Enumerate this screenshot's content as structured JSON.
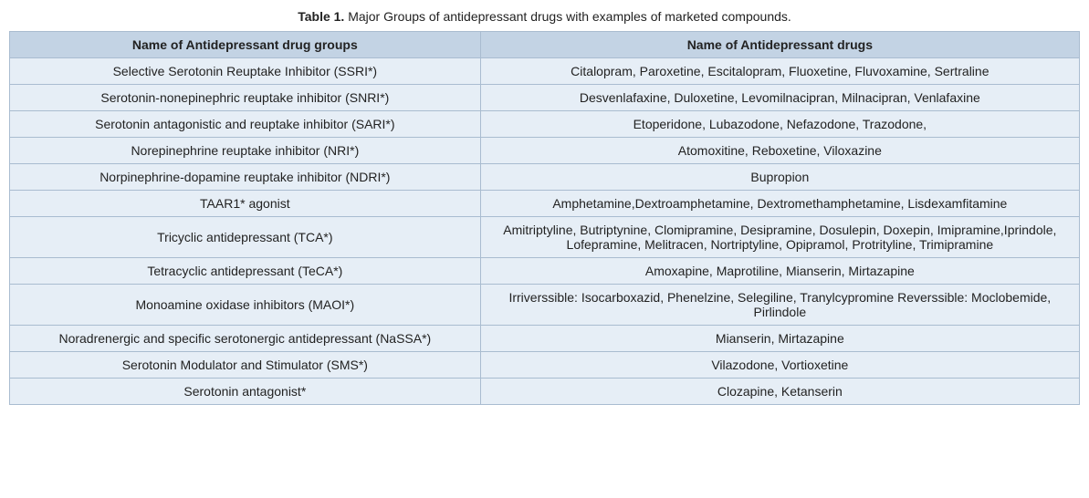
{
  "caption": {
    "label": "Table 1.",
    "text": "Major Groups of antidepressant drugs with examples of marketed compounds."
  },
  "table": {
    "columns": [
      "Name of Antidepressant drug groups",
      "Name of Antidepressant drugs"
    ],
    "rows": [
      {
        "group": "Selective Serotonin Reuptake Inhibitor (SSRI*)",
        "drugs": "Citalopram, Paroxetine, Escitalopram, Fluoxetine, Fluvoxamine, Sertraline"
      },
      {
        "group": "Serotonin-nonepinephric reuptake inhibitor (SNRI*)",
        "drugs": "Desvenlafaxine, Duloxetine, Levomilnacipran, Milnacipran, Venlafaxine"
      },
      {
        "group": "Serotonin antagonistic and reuptake inhibitor (SARI*)",
        "drugs": "Etoperidone, Lubazodone, Nefazodone, Trazodone,"
      },
      {
        "group": "Norepinephrine reuptake inhibitor (NRI*)",
        "drugs": "Atomoxitine, Reboxetine, Viloxazine"
      },
      {
        "group": "Norpinephrine-dopamine reuptake inhibitor (NDRI*)",
        "drugs": "Bupropion"
      },
      {
        "group": "TAAR1* agonist",
        "drugs": "Amphetamine,Dextroamphetamine, Dextromethamphetamine, Lisdexamfitamine"
      },
      {
        "group": "Tricyclic antidepressant (TCA*)",
        "drugs": "Amitriptyline, Butriptynine, Clomipramine, Desipramine, Dosulepin, Doxepin, Imipramine,Iprindole, Lofepramine, Melitracen, Nortriptyline, Opipramol, Protrityline, Trimipramine"
      },
      {
        "group": "Tetracyclic antidepressant (TeCA*)",
        "drugs": "Amoxapine, Maprotiline, Mianserin, Mirtazapine"
      },
      {
        "group": "Monoamine oxidase inhibitors (MAOI*)",
        "drugs": "Irriverssible: Isocarboxazid, Phenelzine, Selegiline, Tranylcypromine Reverssible: Moclobemide, Pirlindole"
      },
      {
        "group": "Noradrenergic and specific serotonergic antidepressant (NaSSA*)",
        "drugs": "Mianserin, Mirtazapine"
      },
      {
        "group": "Serotonin Modulator and Stimulator (SMS*)",
        "drugs": "Vilazodone, Vortioxetine"
      },
      {
        "group": "Serotonin antagonist*",
        "drugs": "Clozapine, Ketanserin"
      }
    ],
    "header_bg": "#c3d3e4",
    "cell_bg": "#e6eef6",
    "border_color": "#a9bcd0",
    "font_size": 14
  }
}
